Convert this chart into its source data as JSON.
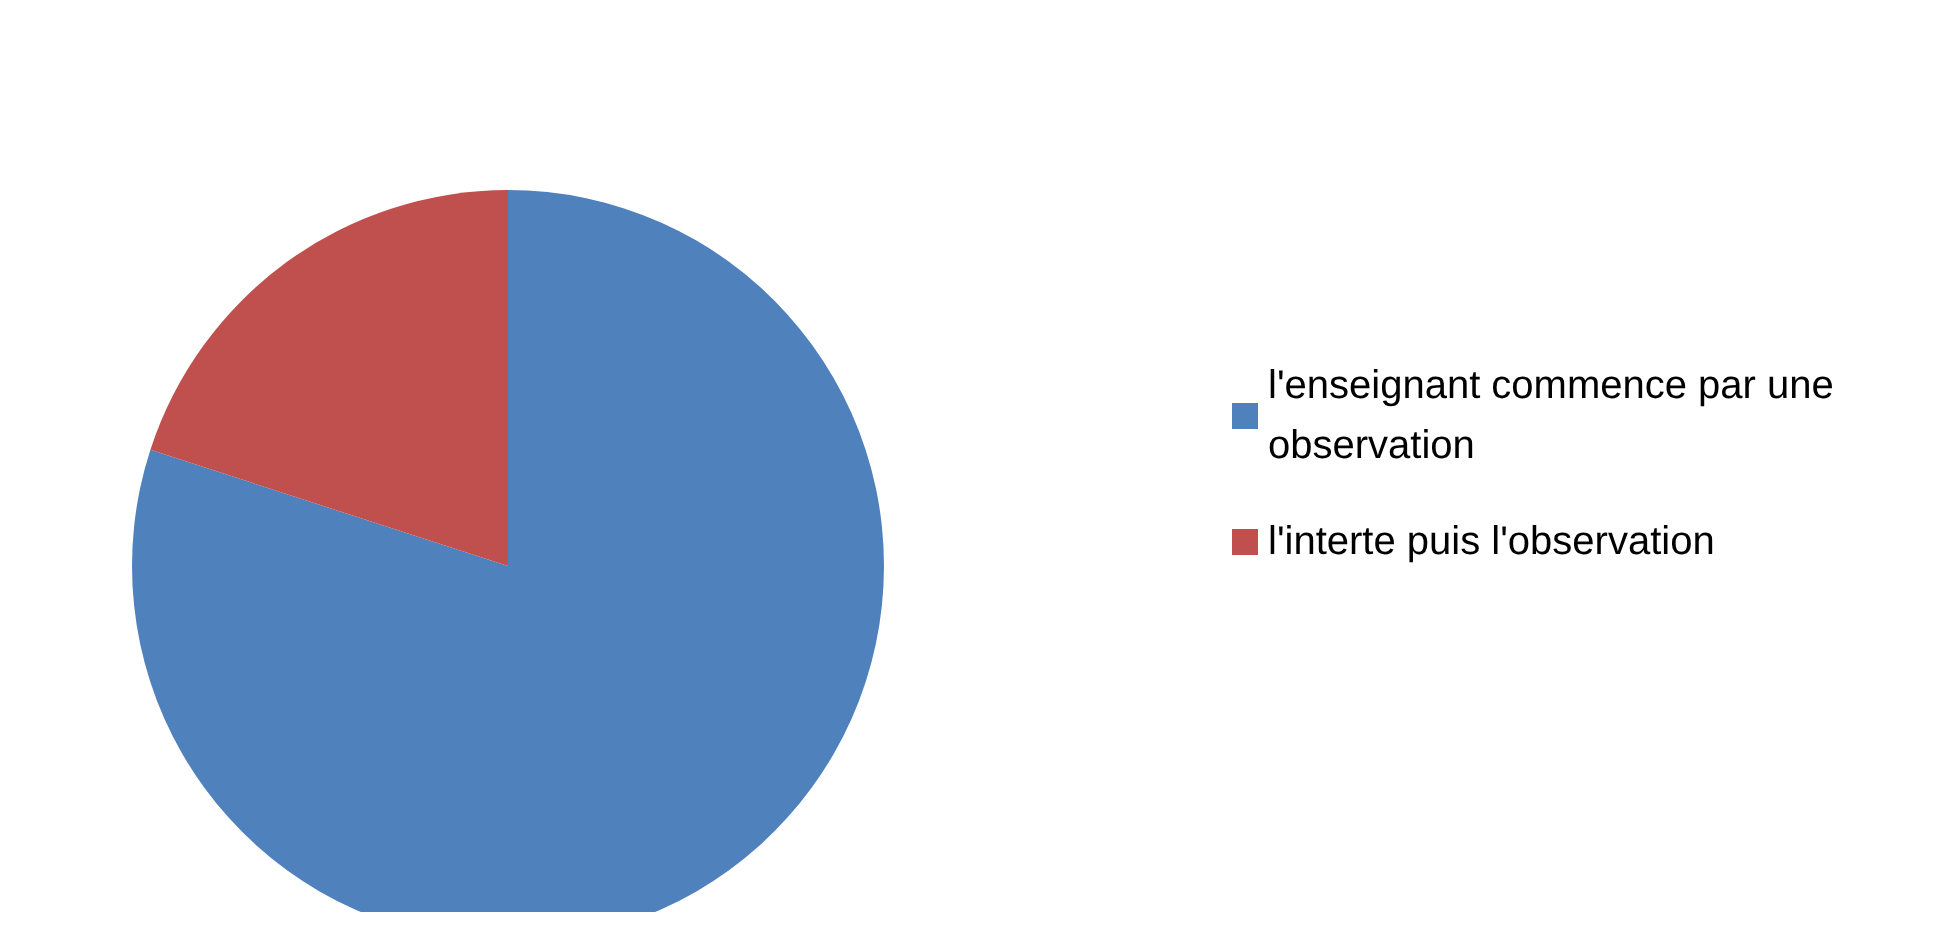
{
  "chart_data": {
    "type": "pie",
    "categories": [
      "l'enseignant commence par une observation",
      "l'interte puis l'observation"
    ],
    "values": [
      80,
      20
    ],
    "colors": [
      "#4f81bd",
      "#c0504d"
    ],
    "legend": "right"
  }
}
